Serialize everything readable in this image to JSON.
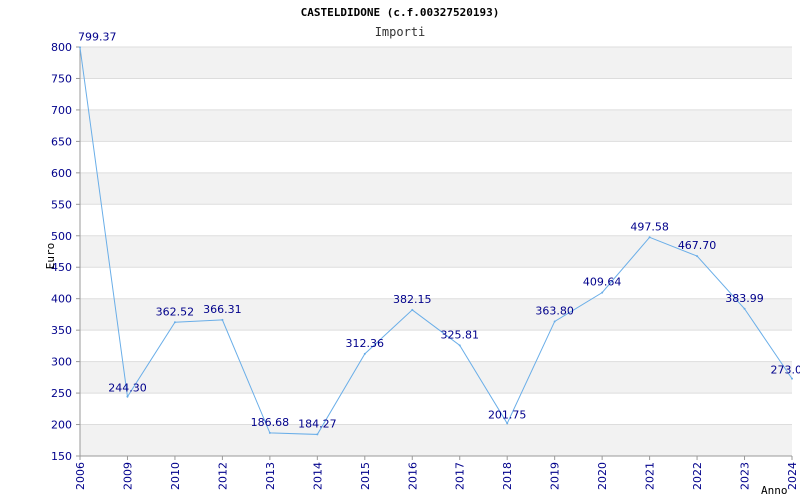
{
  "chart_data": {
    "type": "line",
    "title": "CASTELDIDONE (c.f.00327520193)",
    "subtitle": "Importi",
    "xlabel": "Anno",
    "ylabel": "Euro",
    "categories": [
      "2006",
      "2009",
      "2010",
      "2012",
      "2013",
      "2014",
      "2015",
      "2016",
      "2017",
      "2018",
      "2019",
      "2020",
      "2021",
      "2022",
      "2023",
      "2024"
    ],
    "values": [
      799.37,
      244.3,
      362.52,
      366.31,
      186.68,
      184.27,
      312.36,
      382.15,
      325.81,
      201.75,
      363.8,
      409.64,
      497.58,
      467.7,
      383.99,
      273.0
    ],
    "value_labels": [
      "799.37",
      "244.30",
      "362.52",
      "366.31",
      "186.68",
      "184.27",
      "312.36",
      "382.15",
      "325.81",
      "201.75",
      "363.80",
      "409.64",
      "497.58",
      "467.70",
      "383.99",
      "273.0"
    ],
    "ylim": [
      150,
      800
    ],
    "yticks": [
      150,
      200,
      250,
      300,
      350,
      400,
      450,
      500,
      550,
      600,
      650,
      700,
      750,
      800
    ],
    "grid": "horizontal-bands",
    "line_color": "#6aaee8",
    "band_color": "#f2f2f2",
    "tick_color": "#00008b"
  }
}
